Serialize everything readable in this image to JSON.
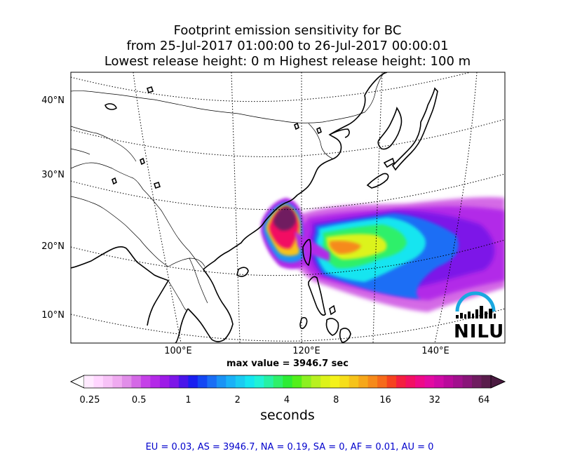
{
  "title": {
    "line1": "Footprint emission sensitivity for BC",
    "line2": "from 25-Jul-2017 01:00:00 to 26-Jul-2017 00:00:01",
    "line3": "Lowest release height: 0 m      Highest release height: 100 m"
  },
  "map": {
    "lat_labels": [
      "40°N",
      "30°N",
      "20°N",
      "10°N"
    ],
    "lon_labels": [
      "100°E",
      "120°E",
      "140°E"
    ],
    "max_value_text": "max value = 3946.7 sec",
    "logo_text": "NILU"
  },
  "colorbar": {
    "ticks": [
      "0.25",
      "0.5",
      "1",
      "2",
      "4",
      "8",
      "16",
      "32",
      "64"
    ],
    "units": "seconds",
    "colors": [
      "#ffeaff",
      "#ffd6ff",
      "#f7c2f7",
      "#efaaf0",
      "#e18ee9",
      "#d469e6",
      "#c541e8",
      "#b42ae8",
      "#9d1be7",
      "#7d16e8",
      "#4a15ea",
      "#1a1ff0",
      "#1447f3",
      "#1a6ef5",
      "#1a93f5",
      "#1ab1f7",
      "#1acbf2",
      "#15e5f0",
      "#1ff2d6",
      "#25f1a4",
      "#2df06a",
      "#2cec34",
      "#52ef1a",
      "#8cf020",
      "#b8f020",
      "#dcf31a",
      "#f4f21a",
      "#f6de1a",
      "#f6c31a",
      "#f6a71a",
      "#f68a1a",
      "#f66a1a",
      "#f5421f",
      "#f41f40",
      "#f21064",
      "#ee0a88",
      "#e30aa2",
      "#cf0aa6",
      "#b90a9b",
      "#a1108d",
      "#891579",
      "#6f1c60",
      "#5a1d4c"
    ]
  },
  "summary": "EU = 0.03,  AS = 3946.7,  NA = 0.19,  SA = 0,  AF = 0.01,  AU = 0"
}
